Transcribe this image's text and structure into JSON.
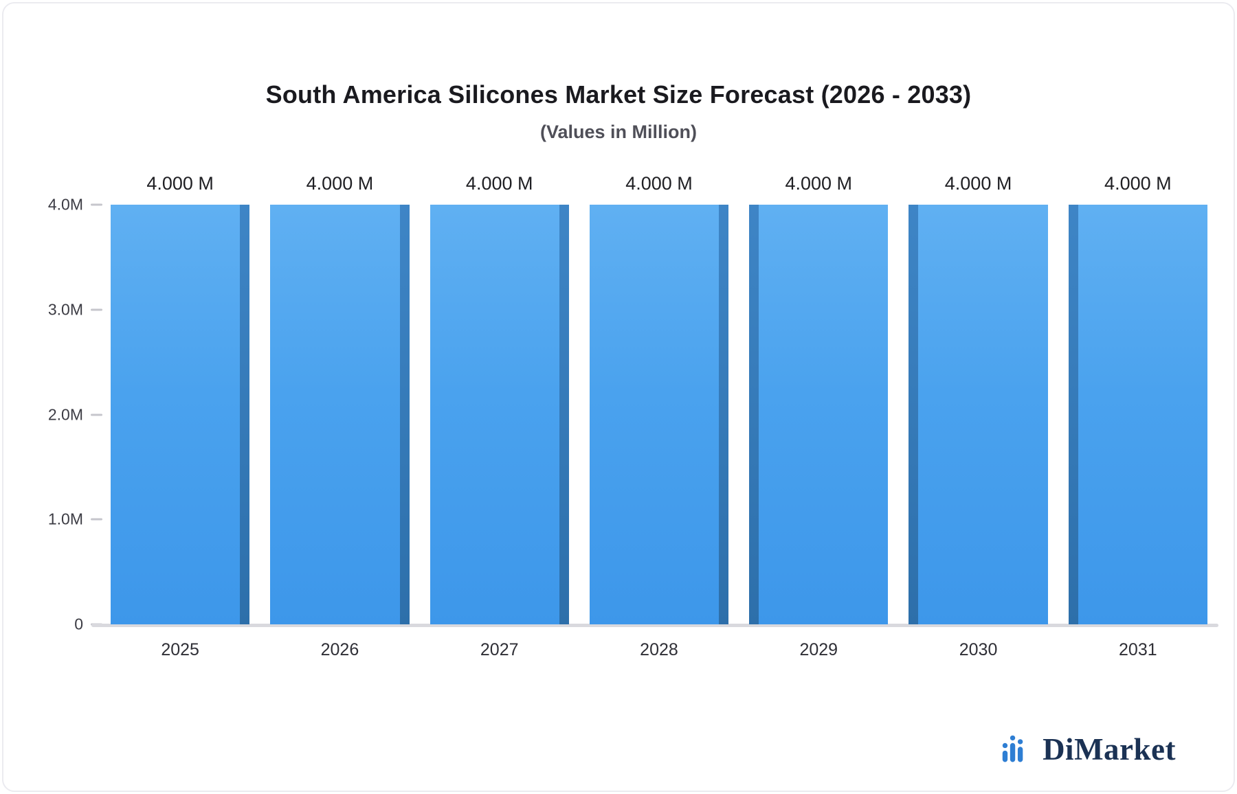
{
  "header": {
    "title": "South America Silicones Market Size Forecast (2026 - 2033)",
    "subtitle": "(Values in Million)"
  },
  "chart_data": {
    "type": "bar",
    "title": "South America Silicones Market Size Forecast (2026 - 2033)",
    "subtitle": "(Values in Million)",
    "categories": [
      "2025",
      "2026",
      "2027",
      "2028",
      "2029",
      "2030",
      "2031"
    ],
    "values": [
      4.0,
      4.0,
      4.0,
      4.0,
      4.0,
      4.0,
      4.0
    ],
    "value_labels": [
      "4.000 M",
      "4.000 M",
      "4.000 M",
      "4.000 M",
      "4.000 M",
      "4.000 M",
      "4.000 M"
    ],
    "unit": "Million",
    "y_ticks": [
      "4.0M",
      "3.0M",
      "2.0M",
      "1.0M",
      "0"
    ],
    "ylim": [
      0,
      4.0
    ],
    "xlabel": "",
    "ylabel": "",
    "grid": false,
    "legend": false,
    "colors": {
      "bar_top": "#60B0F2",
      "bar_bottom": "#3D97EA",
      "bar_edge": "#2D6FAA",
      "baseline": "#D9D9DE"
    }
  },
  "branding": {
    "name": "DiMarket",
    "icon": "bar-chart-logo-icon",
    "text_color": "#1B3254",
    "icon_color": "#2E7ED3"
  }
}
